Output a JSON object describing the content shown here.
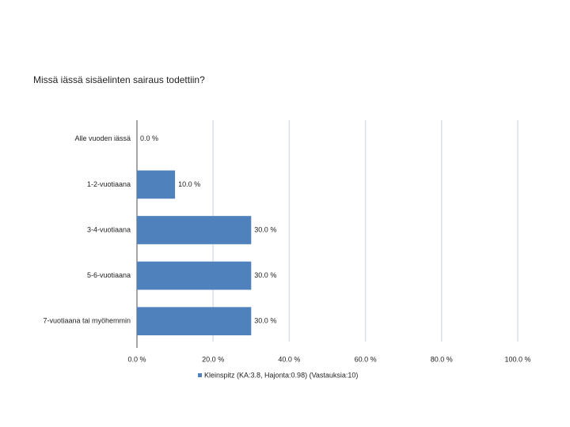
{
  "chart_data": {
    "type": "bar",
    "orientation": "horizontal",
    "title": "Missä iässä sisäelinten sairaus todettiin?",
    "categories": [
      "Alle vuoden iässä",
      "1-2-vuotiaana",
      "3-4-vuotiaana",
      "5-6-vuotiaana",
      "7-vuotiaana tai myöhemmin"
    ],
    "series": [
      {
        "name": "Kleinspitz (KA:3.8, Hajonta:0.98) (Vastauksia:10)",
        "color": "#4f81bd",
        "values": [
          0,
          10,
          30,
          30,
          30
        ],
        "value_labels": [
          "0.0 %",
          "10.0 %",
          "30.0 %",
          "30.0 %",
          "30.0 %"
        ]
      }
    ],
    "xlim": [
      0,
      100
    ],
    "xticks": [
      {
        "value": 0,
        "label": "0.0 %"
      },
      {
        "value": 20,
        "label": "20.0 %"
      },
      {
        "value": 40,
        "label": "40.0 %"
      },
      {
        "value": 60,
        "label": "60.0 %"
      },
      {
        "value": 80,
        "label": "80.0 %"
      },
      {
        "value": 100,
        "label": "100.0 %"
      }
    ],
    "grid": true,
    "legend": "bottom"
  }
}
